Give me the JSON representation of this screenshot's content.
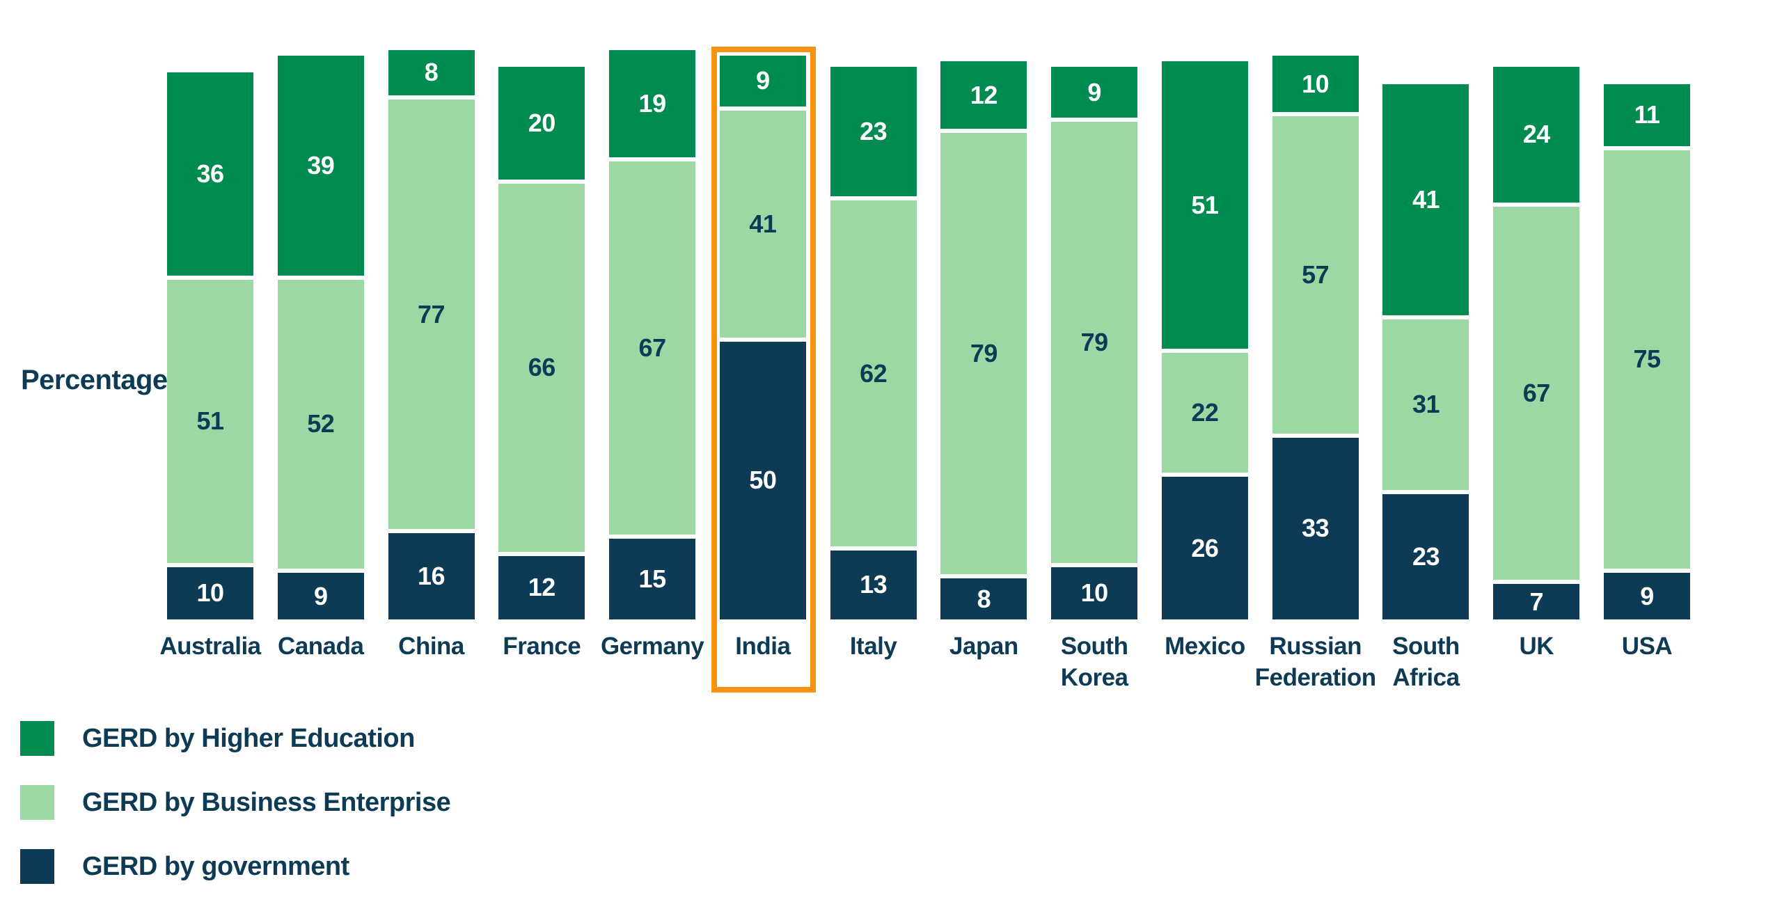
{
  "chart_data": {
    "type": "bar",
    "subtype": "stacked",
    "title": "",
    "xlabel": "",
    "ylabel": "Percentage",
    "ylim": [
      0,
      100
    ],
    "grid": false,
    "value_labels": "inside-segments",
    "legend_position": "bottom-left",
    "categories": [
      "Australia",
      "Canada",
      "China",
      "France",
      "Germany",
      "India",
      "Italy",
      "Japan",
      "South Korea",
      "Mexico",
      "Russian Federation",
      "South Africa",
      "UK",
      "USA"
    ],
    "stack_order_top_to_bottom": [
      "GERD by Higher Education",
      "GERD by Business Enterprise",
      "GERD by government"
    ],
    "series": [
      {
        "name": "GERD by Higher Education",
        "color": "#008B50",
        "label_color": "#FFFFFF",
        "values": [
          36,
          39,
          8,
          20,
          19,
          9,
          23,
          12,
          9,
          51,
          10,
          41,
          24,
          11
        ]
      },
      {
        "name": "GERD by Business Enterprise",
        "color": "#9CD8A3",
        "label_color": "#0D3A54",
        "values": [
          51,
          52,
          77,
          66,
          67,
          41,
          62,
          79,
          79,
          22,
          57,
          31,
          67,
          75
        ]
      },
      {
        "name": "GERD by government",
        "color": "#0D3A54",
        "label_color": "#FFFFFF",
        "values": [
          10,
          9,
          16,
          12,
          15,
          50,
          13,
          8,
          10,
          26,
          33,
          23,
          7,
          9
        ]
      }
    ],
    "highlighted_category": "India",
    "highlight_color": "#F6920D"
  },
  "y_axis": {
    "label": "Percentage"
  },
  "legend": {
    "items": [
      {
        "label": "GERD by Higher Education",
        "color": "#008B50"
      },
      {
        "label": "GERD by Business Enterprise",
        "color": "#9CD8A3"
      },
      {
        "label": "GERD by government",
        "color": "#0D3A54"
      }
    ]
  },
  "highlight": {
    "category": "India",
    "color": "#F6920D"
  },
  "layout_colors": {
    "background": "#FFFFFF",
    "text": "#0D3A54",
    "segment_gap": "#FFFFFF"
  }
}
